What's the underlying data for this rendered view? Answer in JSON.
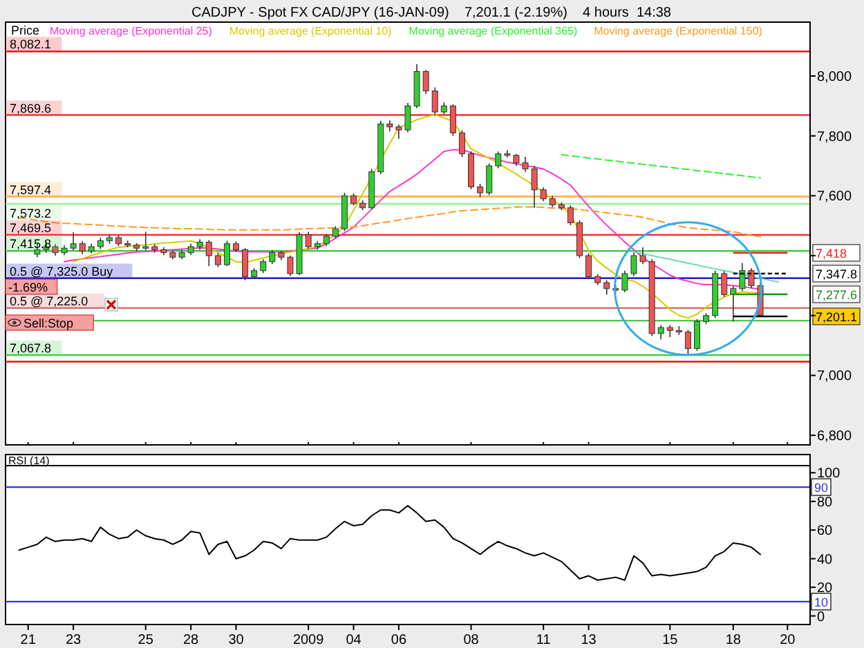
{
  "chart_data": [
    {
      "type": "candlestick",
      "title": "CADJPY - Spot FX CAD/JPY (16-JAN-09)    7,201.1 (-2.19%)    4 hours  14:38",
      "subtitle": "Price",
      "categories": [
        null,
        "21",
        null,
        null,
        null,
        null,
        "23",
        null,
        null,
        null,
        null,
        null,
        null,
        null,
        "25",
        null,
        null,
        null,
        null,
        "28",
        null,
        null,
        null,
        null,
        "30",
        null,
        null,
        null,
        null,
        null,
        null,
        null,
        "2009",
        null,
        null,
        null,
        null,
        "04",
        null,
        null,
        null,
        null,
        "06",
        null,
        null,
        null,
        null,
        null,
        null,
        null,
        "08",
        null,
        null,
        null,
        null,
        null,
        null,
        null,
        "11",
        null,
        null,
        null,
        null,
        "13",
        null,
        null,
        null,
        null,
        null,
        null,
        null,
        null,
        "15",
        null,
        null,
        null,
        null,
        null,
        null,
        "18",
        null,
        null,
        null,
        null,
        null,
        "20",
        null,
        null
      ],
      "ohlc": [
        null,
        null,
        [
          7405,
          7440,
          7395,
          7420
        ],
        [
          7420,
          7445,
          7410,
          7430
        ],
        [
          7430,
          7438,
          7400,
          7410
        ],
        [
          7410,
          7435,
          7402,
          7425
        ],
        [
          7425,
          7478,
          7418,
          7440
        ],
        [
          7440,
          7448,
          7405,
          7415
        ],
        [
          7415,
          7440,
          7408,
          7430
        ],
        [
          7430,
          7460,
          7422,
          7450
        ],
        [
          7450,
          7470,
          7440,
          7460
        ],
        [
          7460,
          7468,
          7432,
          7440
        ],
        [
          7440,
          7450,
          7428,
          7435
        ],
        [
          7435,
          7442,
          7415,
          7425
        ],
        [
          7425,
          7480,
          7418,
          7430
        ],
        [
          7430,
          7438,
          7410,
          7420
        ],
        [
          7420,
          7428,
          7402,
          7410
        ],
        [
          7410,
          7418,
          7388,
          7395
        ],
        [
          7395,
          7420,
          7388,
          7410
        ],
        [
          7410,
          7440,
          7402,
          7430
        ],
        [
          7430,
          7455,
          7420,
          7445
        ],
        [
          7445,
          7452,
          7365,
          7400
        ],
        [
          7400,
          7408,
          7362,
          7370
        ],
        [
          7370,
          7450,
          7365,
          7440
        ],
        [
          7440,
          7448,
          7412,
          7420
        ],
        [
          7420,
          7425,
          7318,
          7330
        ],
        [
          7330,
          7358,
          7322,
          7350
        ],
        [
          7350,
          7388,
          7342,
          7380
        ],
        [
          7380,
          7418,
          7372,
          7410
        ],
        [
          7410,
          7415,
          7385,
          7395
        ],
        [
          7395,
          7400,
          7332,
          7340
        ],
        [
          7340,
          7478,
          7335,
          7470
        ],
        [
          7470,
          7480,
          7422,
          7430
        ],
        [
          7430,
          7448,
          7420,
          7440
        ],
        [
          7440,
          7472,
          7432,
          7465
        ],
        [
          7465,
          7498,
          7458,
          7490
        ],
        [
          7490,
          7610,
          7482,
          7600
        ],
        [
          7600,
          7608,
          7568,
          7575
        ],
        [
          7575,
          7585,
          7552,
          7560
        ],
        [
          7560,
          7690,
          7555,
          7680
        ],
        [
          7680,
          7850,
          7672,
          7840
        ],
        [
          7840,
          7852,
          7815,
          7830
        ],
        [
          7830,
          7838,
          7790,
          7820
        ],
        [
          7820,
          7910,
          7812,
          7900
        ],
        [
          7900,
          8040,
          7892,
          8015
        ],
        [
          8015,
          8020,
          7940,
          7950
        ],
        [
          7950,
          7962,
          7870,
          7880
        ],
        [
          7880,
          7912,
          7872,
          7900
        ],
        [
          7900,
          7905,
          7800,
          7810
        ],
        [
          7810,
          7818,
          7730,
          7740
        ],
        [
          7740,
          7748,
          7622,
          7630
        ],
        [
          7630,
          7640,
          7595,
          7610
        ],
        [
          7610,
          7708,
          7602,
          7700
        ],
        [
          7700,
          7748,
          7692,
          7740
        ],
        [
          7740,
          7752,
          7728,
          7735
        ],
        [
          7735,
          7740,
          7700,
          7710
        ],
        [
          7710,
          7730,
          7680,
          7690
        ],
        [
          7690,
          7700,
          7560,
          7620
        ],
        [
          7620,
          7628,
          7582,
          7590
        ],
        [
          7590,
          7600,
          7562,
          7570
        ],
        [
          7570,
          7578,
          7552,
          7560
        ],
        [
          7560,
          7568,
          7502,
          7510
        ],
        [
          7510,
          7518,
          7392,
          7400
        ],
        [
          7400,
          7408,
          7322,
          7330
        ],
        [
          7330,
          7338,
          7302,
          7310
        ],
        [
          7310,
          7318,
          7270,
          7290
        ],
        [
          7290,
          7300,
          7278,
          7285
        ],
        [
          7285,
          7350,
          7278,
          7340
        ],
        [
          7340,
          7410,
          7332,
          7400
        ],
        [
          7400,
          7428,
          7372,
          7380
        ],
        [
          7380,
          7388,
          7132,
          7140
        ],
        [
          7140,
          7168,
          7120,
          7160
        ],
        [
          7160,
          7168,
          7128,
          7150
        ],
        [
          7150,
          7165,
          7135,
          7145
        ],
        [
          7145,
          7152,
          7066,
          7090
        ],
        [
          7090,
          7188,
          7082,
          7180
        ],
        [
          7180,
          7208,
          7172,
          7200
        ],
        [
          7200,
          7350,
          7192,
          7340
        ],
        [
          7340,
          7348,
          7262,
          7270
        ],
        [
          7270,
          7298,
          7180,
          7290
        ],
        [
          7290,
          7375,
          7282,
          7350
        ],
        [
          7350,
          7358,
          7292,
          7300
        ],
        [
          7300,
          7310,
          7195,
          7201.1
        ],
        null,
        null,
        null,
        null,
        null
      ],
      "series": [
        {
          "type": "line",
          "name": "Moving average (Exponential 25)",
          "color": "#ff33cc",
          "values": [
            null,
            null,
            null,
            null,
            null,
            7380,
            7385,
            7389,
            7393,
            7397,
            7401,
            7405,
            7409,
            7412,
            7414,
            7416,
            7418,
            7420,
            7422,
            7424,
            7426,
            7425,
            7422,
            7418,
            7415,
            7413,
            7413,
            7413,
            7413,
            7413,
            7415,
            7419,
            7422,
            7425,
            7440,
            7458,
            7476,
            7495,
            7525,
            7555,
            7585,
            7614,
            7633,
            7652,
            7672,
            7697,
            7722,
            7748,
            7754,
            7754,
            7744,
            7735,
            7727,
            7720,
            7712,
            7707,
            7701,
            7696,
            7689,
            7674,
            7656,
            7635,
            7600,
            7565,
            7532,
            7502,
            7474,
            7446,
            7420,
            7394,
            7372,
            7354,
            7335,
            7322,
            7315,
            7307,
            7303,
            7303,
            7303,
            7300,
            7297,
            7292,
            7288,
            null,
            null,
            null,
            null,
            null
          ]
        },
        {
          "type": "line",
          "name": "Moving average (Exponential 10)",
          "color": "#d6cc00",
          "values": [
            null,
            null,
            null,
            null,
            null,
            null,
            7380,
            7390,
            7400,
            7410,
            7420,
            7428,
            7431,
            7434,
            7436,
            7439,
            7442,
            7444,
            7447,
            7449,
            7441,
            7426,
            7410,
            7395,
            7380,
            7377,
            7385,
            7392,
            7400,
            7406,
            7412,
            7418,
            7423,
            7431,
            7450,
            7470,
            7497,
            7552,
            7607,
            7662,
            7719,
            7775,
            7827,
            7841,
            7854,
            7863,
            7871,
            7860,
            7849,
            7803,
            7757,
            7741,
            7725,
            7709,
            7690,
            7672,
            7653,
            7633,
            7614,
            7587,
            7565,
            7538,
            7478,
            7418,
            7382,
            7359,
            7337,
            7321,
            7315,
            7298,
            7275,
            7248,
            7220,
            7200,
            7192,
            7205,
            7228,
            7246,
            7262,
            7273,
            7279,
            7277,
            7275,
            null,
            null,
            null,
            null,
            null
          ]
        },
        {
          "type": "line",
          "name": "Moving average (Exponential 365)",
          "color": "#33ee33",
          "line_style": "dashed",
          "values": [
            null,
            null,
            null,
            null,
            null,
            null,
            null,
            null,
            null,
            null,
            null,
            null,
            null,
            null,
            null,
            null,
            null,
            null,
            null,
            null,
            null,
            null,
            null,
            null,
            null,
            null,
            null,
            null,
            null,
            null,
            null,
            null,
            null,
            null,
            null,
            null,
            null,
            null,
            null,
            null,
            null,
            null,
            null,
            null,
            null,
            null,
            null,
            null,
            null,
            null,
            null,
            null,
            null,
            null,
            null,
            null,
            null,
            null,
            null,
            null,
            7737,
            7733,
            7730,
            7726,
            7723,
            7719,
            7716,
            7712,
            7709,
            7705,
            7702,
            7698,
            7695,
            7691,
            7688,
            7684,
            7681,
            7677,
            7674,
            7670,
            7667,
            7663,
            7660,
            null,
            null,
            null,
            null,
            null
          ]
        },
        {
          "type": "line",
          "name": "Moving average (Exponential 150)",
          "color": "#ff9922",
          "line_style": "dashed",
          "values": [
            7526,
            7522,
            7518,
            7514,
            7510,
            7508,
            7507,
            7505,
            7504,
            7502,
            7500,
            7499,
            7497,
            7495,
            7494,
            7493,
            7492,
            7491,
            7490,
            7490,
            7489,
            7488,
            7487,
            7486,
            7486,
            7486,
            7486,
            7486,
            7486,
            7486,
            7487,
            7489,
            7490,
            7491,
            7492,
            7493,
            7494,
            7496,
            7500,
            7505,
            7510,
            7514,
            7519,
            7524,
            7528,
            7533,
            7537,
            7541,
            7546,
            7550,
            7552,
            7554,
            7556,
            7558,
            7560,
            7562,
            7563,
            7563,
            7561,
            7559,
            7558,
            7556,
            7554,
            7550,
            7547,
            7543,
            7540,
            7536,
            7533,
            7528,
            7521,
            7514,
            7506,
            7499,
            7493,
            7490,
            7488,
            7485,
            7483,
            7480,
            7474,
            7468,
            7463,
            null,
            null,
            null,
            null,
            null
          ]
        },
        {
          "type": "line",
          "color": "#66ddbb",
          "values": [
            null,
            null,
            null,
            null,
            null,
            null,
            null,
            null,
            null,
            null,
            null,
            null,
            null,
            null,
            null,
            null,
            null,
            null,
            null,
            null,
            null,
            null,
            null,
            null,
            null,
            null,
            null,
            null,
            null,
            null,
            null,
            null,
            null,
            null,
            null,
            null,
            null,
            null,
            null,
            null,
            null,
            null,
            null,
            null,
            null,
            null,
            null,
            null,
            null,
            null,
            null,
            null,
            null,
            null,
            null,
            null,
            null,
            null,
            null,
            null,
            null,
            null,
            null,
            null,
            null,
            null,
            null,
            null,
            7413,
            7407,
            7400,
            7394,
            7388,
            7381,
            7375,
            7369,
            7362,
            7356,
            7350,
            7344,
            7337,
            7331,
            7324,
            7318,
            7312,
            null,
            null,
            null
          ]
        }
      ],
      "ylim": [
        6768,
        8180
      ],
      "yticks": [
        {
          "value": 6800,
          "label": "6,800"
        },
        {
          "value": 7000,
          "label": "7,000"
        },
        {
          "value": 7200,
          "label": null
        },
        {
          "value": 7400,
          "label": null
        },
        {
          "value": 7600,
          "label": "7,600"
        },
        {
          "value": 7800,
          "label": "7,800"
        },
        {
          "value": 8000,
          "label": "8,000"
        }
      ],
      "tick_labels": "y",
      "legend": "top left",
      "ref_lines": [
        {
          "axis": "y",
          "value": 8082.1,
          "label": "8,082.1",
          "color": "#ee1111"
        },
        {
          "axis": "y",
          "value": 7869.6,
          "label": "7,869.6",
          "color": "#ee3333"
        },
        {
          "axis": "y",
          "value": 7597.4,
          "label": "7,597.4",
          "color": "#ffaa44"
        },
        {
          "axis": "y",
          "value": 7573.2,
          "label": "7,573.2",
          "color": "#99ee99"
        },
        {
          "axis": "y",
          "value": 7469.5,
          "label": "7,469.5",
          "color": "#ee3333"
        },
        {
          "axis": "y",
          "value": 7415.8,
          "label": "7,415.8",
          "color": "#44cc44"
        },
        {
          "axis": "y",
          "value": 7325,
          "label": "0.5 @ 7,325.0 Buy",
          "color": "#0000cc"
        },
        {
          "axis": "y",
          "value": 7225,
          "label": "0.5 @ 7,225.0",
          "color": "#cc6666"
        },
        {
          "axis": "y",
          "value": 7183,
          "color": "#44cc44"
        },
        {
          "axis": "y",
          "value": 7067.8,
          "label": "7,067.8",
          "color": "#44cc44"
        },
        {
          "axis": "y",
          "value": 7046.1,
          "color": "#ee1111"
        }
      ],
      "annotations": [
        "-1.69%",
        "Sell:Stop",
        "7,418",
        "7,347.8",
        "7,277.6",
        "7,201.1"
      ]
    },
    {
      "type": "line",
      "title": "RSI (14)",
      "color": "#000000",
      "categories": [
        null,
        "21",
        null,
        null,
        null,
        null,
        "23",
        null,
        null,
        null,
        null,
        null,
        null,
        null,
        "25",
        null,
        null,
        null,
        null,
        "28",
        null,
        null,
        null,
        null,
        "30",
        null,
        null,
        null,
        null,
        null,
        null,
        null,
        "2009",
        null,
        null,
        null,
        null,
        "04",
        null,
        null,
        null,
        null,
        "06",
        null,
        null,
        null,
        null,
        null,
        null,
        null,
        "08",
        null,
        null,
        null,
        null,
        null,
        null,
        null,
        "11",
        null,
        null,
        null,
        null,
        "13",
        null,
        null,
        null,
        null,
        null,
        null,
        null,
        null,
        "15",
        null,
        null,
        null,
        null,
        null,
        null,
        "18",
        null,
        null,
        null,
        null,
        null,
        "20",
        null,
        null
      ],
      "values": [
        46,
        48,
        50,
        55,
        52,
        53,
        53,
        54,
        52,
        62,
        57,
        54,
        55,
        60,
        56,
        54,
        53,
        50,
        53,
        59,
        58,
        43,
        50,
        52,
        40,
        42,
        46,
        52,
        51,
        47,
        54,
        53,
        53,
        53,
        55,
        61,
        66,
        63,
        64,
        70,
        74,
        74,
        72,
        77,
        72,
        66,
        67,
        62,
        54,
        51,
        47,
        43,
        48,
        52,
        49,
        47,
        44,
        42,
        44,
        41,
        38,
        32,
        26,
        28,
        25,
        26,
        27,
        25,
        42,
        37,
        28,
        29,
        28,
        29,
        30,
        31,
        34,
        42,
        45,
        51,
        50,
        48,
        43,
        null,
        null,
        null,
        null,
        null
      ],
      "ylim": [
        -6,
        105
      ],
      "yticks": [
        0,
        20,
        40,
        60,
        80,
        100
      ],
      "ref_lines": [
        {
          "axis": "y",
          "value": 90,
          "label": "90",
          "color": "#3333dd"
        },
        {
          "axis": "y",
          "value": 10,
          "label": "10",
          "color": "#3333dd"
        }
      ]
    }
  ]
}
